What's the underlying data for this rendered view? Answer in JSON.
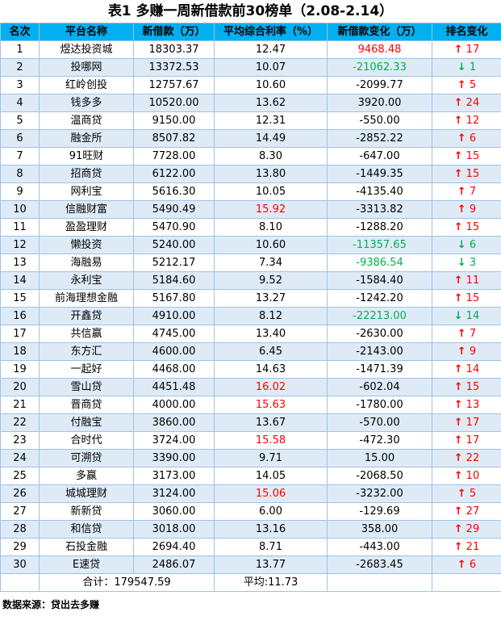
{
  "title": "表1 多赚一周新借款前30榜单（2.08-2.14）",
  "source": "数据来源：贷出去多赚",
  "icons": {
    "up_arrow": "↑",
    "down_arrow": "↓"
  },
  "colors": {
    "header_bg": "#00B0F0",
    "alt_row_bg": "#DEEBF7",
    "positive_red": "#FF0000",
    "negative_green": "#00B050",
    "border": "#9DC3E6"
  },
  "chart_data": {
    "type": "table",
    "title": "表1 多赚一周新借款前30榜单（2.08-2.14）",
    "columns": [
      "名次",
      "平台名称",
      "新借款（万）",
      "平均综合利率（%）",
      "新借款变化（万）",
      "排名变化"
    ],
    "rows": [
      {
        "rank": "1",
        "platform": "煜达投资城",
        "new_loan": "18303.37",
        "avg_rate": "12.47",
        "loan_change": "9468.48",
        "change_color": "red",
        "rank_change": "17",
        "rank_dir": "up"
      },
      {
        "rank": "2",
        "platform": "投哪网",
        "new_loan": "13372.53",
        "avg_rate": "10.07",
        "loan_change": "-21062.33",
        "change_color": "green",
        "rank_change": "1",
        "rank_dir": "down"
      },
      {
        "rank": "3",
        "platform": "红岭创投",
        "new_loan": "12757.67",
        "avg_rate": "10.60",
        "loan_change": "-2099.77",
        "rank_change": "5",
        "rank_dir": "up"
      },
      {
        "rank": "4",
        "platform": "钱多多",
        "new_loan": "10520.00",
        "avg_rate": "13.62",
        "loan_change": "3920.00",
        "rank_change": "24",
        "rank_dir": "up"
      },
      {
        "rank": "5",
        "platform": "温商贷",
        "new_loan": "9150.00",
        "avg_rate": "12.31",
        "loan_change": "-550.00",
        "rank_change": "12",
        "rank_dir": "up"
      },
      {
        "rank": "6",
        "platform": "融金所",
        "new_loan": "8507.82",
        "avg_rate": "14.49",
        "loan_change": "-2852.22",
        "rank_change": "6",
        "rank_dir": "up"
      },
      {
        "rank": "7",
        "platform": "91旺财",
        "new_loan": "7728.00",
        "avg_rate": "8.30",
        "loan_change": "-647.00",
        "rank_change": "15",
        "rank_dir": "up"
      },
      {
        "rank": "8",
        "platform": "招商贷",
        "new_loan": "6122.00",
        "avg_rate": "13.80",
        "loan_change": "-1449.35",
        "rank_change": "15",
        "rank_dir": "up"
      },
      {
        "rank": "9",
        "platform": "网利宝",
        "new_loan": "5616.30",
        "avg_rate": "10.05",
        "loan_change": "-4135.40",
        "rank_change": "7",
        "rank_dir": "up"
      },
      {
        "rank": "10",
        "platform": "信融财富",
        "new_loan": "5490.49",
        "avg_rate": "15.92",
        "rate_color": "red",
        "loan_change": "-3313.82",
        "rank_change": "9",
        "rank_dir": "up"
      },
      {
        "rank": "11",
        "platform": "盈盈理财",
        "new_loan": "5470.90",
        "avg_rate": "8.10",
        "loan_change": "-1288.20",
        "rank_change": "15",
        "rank_dir": "up"
      },
      {
        "rank": "12",
        "platform": "懒投资",
        "new_loan": "5240.00",
        "avg_rate": "10.60",
        "loan_change": "-11357.65",
        "change_color": "green",
        "rank_change": "6",
        "rank_dir": "down"
      },
      {
        "rank": "13",
        "platform": "海融易",
        "new_loan": "5212.17",
        "avg_rate": "7.34",
        "loan_change": "-9386.54",
        "change_color": "green",
        "rank_change": "3",
        "rank_dir": "down"
      },
      {
        "rank": "14",
        "platform": "永利宝",
        "new_loan": "5184.60",
        "avg_rate": "9.52",
        "loan_change": "-1584.40",
        "rank_change": "11",
        "rank_dir": "up"
      },
      {
        "rank": "15",
        "platform": "前海理想金融",
        "new_loan": "5167.80",
        "avg_rate": "13.27",
        "loan_change": "-1242.20",
        "rank_change": "15",
        "rank_dir": "up"
      },
      {
        "rank": "16",
        "platform": "开鑫贷",
        "new_loan": "4910.00",
        "avg_rate": "8.12",
        "loan_change": "-22213.00",
        "change_color": "green",
        "rank_change": "14",
        "rank_dir": "down"
      },
      {
        "rank": "17",
        "platform": "共信赢",
        "new_loan": "4745.00",
        "avg_rate": "13.40",
        "loan_change": "-2630.00",
        "rank_change": "7",
        "rank_dir": "up"
      },
      {
        "rank": "18",
        "platform": "东方汇",
        "new_loan": "4600.00",
        "avg_rate": "6.45",
        "loan_change": "-2143.00",
        "rank_change": "9",
        "rank_dir": "up"
      },
      {
        "rank": "19",
        "platform": "一起好",
        "new_loan": "4468.00",
        "avg_rate": "14.63",
        "loan_change": "-1471.39",
        "rank_change": "14",
        "rank_dir": "up"
      },
      {
        "rank": "20",
        "platform": "雪山贷",
        "new_loan": "4451.48",
        "avg_rate": "16.02",
        "rate_color": "red",
        "loan_change": "-602.04",
        "rank_change": "15",
        "rank_dir": "up"
      },
      {
        "rank": "21",
        "platform": "晋商贷",
        "new_loan": "4000.00",
        "avg_rate": "15.63",
        "rate_color": "red",
        "loan_change": "-1780.00",
        "rank_change": "13",
        "rank_dir": "up"
      },
      {
        "rank": "22",
        "platform": "付融宝",
        "new_loan": "3860.00",
        "avg_rate": "13.67",
        "loan_change": "-570.00",
        "rank_change": "17",
        "rank_dir": "up"
      },
      {
        "rank": "23",
        "platform": "合时代",
        "new_loan": "3724.00",
        "avg_rate": "15.58",
        "rate_color": "red",
        "loan_change": "-472.30",
        "rank_change": "17",
        "rank_dir": "up"
      },
      {
        "rank": "24",
        "platform": "可溯贷",
        "new_loan": "3390.00",
        "avg_rate": "9.71",
        "loan_change": "15.00",
        "rank_change": "22",
        "rank_dir": "up"
      },
      {
        "rank": "25",
        "platform": "多赢",
        "new_loan": "3173.00",
        "avg_rate": "14.05",
        "loan_change": "-2068.50",
        "rank_change": "10",
        "rank_dir": "up"
      },
      {
        "rank": "26",
        "platform": "城城理财",
        "new_loan": "3124.00",
        "avg_rate": "15.06",
        "rate_color": "red",
        "loan_change": "-3232.00",
        "rank_change": "5",
        "rank_dir": "up"
      },
      {
        "rank": "27",
        "platform": "新新贷",
        "new_loan": "3060.00",
        "avg_rate": "6.00",
        "loan_change": "-129.69",
        "rank_change": "27",
        "rank_dir": "up"
      },
      {
        "rank": "28",
        "platform": "和信贷",
        "new_loan": "3018.00",
        "avg_rate": "13.16",
        "loan_change": "358.00",
        "rank_change": "29",
        "rank_dir": "up"
      },
      {
        "rank": "29",
        "platform": "石投金融",
        "new_loan": "2694.40",
        "avg_rate": "8.71",
        "loan_change": "-443.00",
        "rank_change": "21",
        "rank_dir": "up"
      },
      {
        "rank": "30",
        "platform": "E速贷",
        "new_loan": "2486.07",
        "avg_rate": "13.77",
        "loan_change": "-2683.45",
        "rank_change": "6",
        "rank_dir": "up"
      }
    ],
    "footer": {
      "total": "合计：179547.59",
      "average": "平均:11.73"
    }
  }
}
